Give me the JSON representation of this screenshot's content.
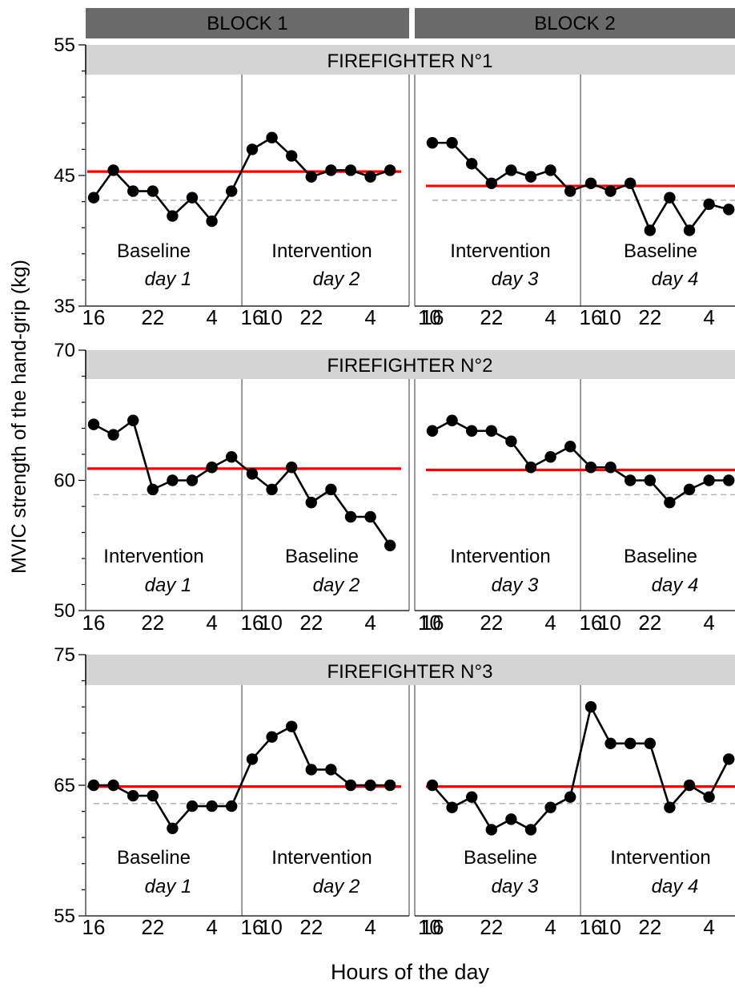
{
  "colors": {
    "block_header": "#6a6a6a",
    "panel_header": "#d4d4d4",
    "mean_line": "#ff0000",
    "ref_line": "#b5b5b5",
    "series": "#000000",
    "divider": "#7a7a7a"
  },
  "chart_data": {
    "type": "line",
    "ylabel": "MVIC strength of the hand-grip (kg)",
    "xlabel": "Hours of the day",
    "blocks": [
      "BLOCK 1",
      "BLOCK 2"
    ],
    "x_tick_labels": [
      "16",
      "22",
      "4",
      "10"
    ],
    "x_hours": [
      16,
      18,
      20,
      22,
      0,
      2,
      4,
      6,
      8,
      10,
      12
    ],
    "grid": false,
    "panels": [
      {
        "title": "FIREFIGHTER N°1",
        "ylim": [
          35,
          55
        ],
        "yticks": [
          35,
          45,
          55
        ],
        "ref_level": 43.1,
        "block1": {
          "mean": 45.3,
          "days": [
            {
              "phase": "Baseline",
              "day": "day 1",
              "values": [
                43.3,
                45.4,
                43.8,
                43.8,
                41.9,
                43.3,
                41.5,
                43.8
              ]
            },
            {
              "phase": "Intervention",
              "day": "day 2",
              "values": [
                47.0,
                47.9,
                46.5,
                44.9,
                45.4,
                45.4,
                44.9,
                45.4
              ]
            }
          ]
        },
        "block2": {
          "mean": 44.2,
          "days": [
            {
              "phase": "Intervention",
              "day": "day 3",
              "values": [
                47.5,
                47.5,
                45.9,
                44.4,
                45.4,
                44.9,
                45.4,
                43.8
              ]
            },
            {
              "phase": "Baseline",
              "day": "day 4",
              "values": [
                44.4,
                43.8,
                44.4,
                40.8,
                43.3,
                40.8,
                42.8,
                42.4
              ]
            }
          ]
        }
      },
      {
        "title": "FIREFIGHTER N°2",
        "ylim": [
          50,
          70
        ],
        "yticks": [
          50,
          60,
          70
        ],
        "ref_level": 58.9,
        "block1": {
          "mean": 60.9,
          "days": [
            {
              "phase": "Intervention",
              "day": "day 1",
              "values": [
                64.3,
                63.5,
                64.6,
                59.3,
                60.0,
                60.0,
                61.0,
                61.8
              ]
            },
            {
              "phase": "Baseline",
              "day": "day 2",
              "values": [
                60.5,
                59.3,
                61.0,
                58.3,
                59.3,
                57.2,
                57.2,
                55.0
              ]
            }
          ]
        },
        "block2": {
          "mean": 60.8,
          "days": [
            {
              "phase": "Intervention",
              "day": "day 3",
              "values": [
                63.8,
                64.6,
                63.8,
                63.8,
                63.0,
                61.0,
                61.8,
                62.6
              ]
            },
            {
              "phase": "Baseline",
              "day": "day 4",
              "values": [
                61.0,
                61.0,
                60.0,
                60.0,
                58.3,
                59.3,
                60.0,
                60.0
              ]
            }
          ]
        }
      },
      {
        "title": "FIREFIGHTER N°3",
        "ylim": [
          55,
          75
        ],
        "yticks": [
          55,
          65,
          75
        ],
        "ref_level": 63.6,
        "block1": {
          "mean": 64.9,
          "days": [
            {
              "phase": "Baseline",
              "day": "day 1",
              "values": [
                65.0,
                65.0,
                64.2,
                64.2,
                61.7,
                63.4,
                63.4,
                63.4
              ]
            },
            {
              "phase": "Intervention",
              "day": "day 2",
              "values": [
                67.0,
                68.7,
                69.5,
                66.2,
                66.2,
                65.0,
                65.0,
                65.0
              ]
            }
          ]
        },
        "block2": {
          "mean": 64.9,
          "days": [
            {
              "phase": "Baseline",
              "day": "day 3",
              "values": [
                65.0,
                63.3,
                64.1,
                61.6,
                62.4,
                61.6,
                63.3,
                64.1
              ]
            },
            {
              "phase": "Intervention",
              "day": "day 4",
              "values": [
                71.0,
                68.2,
                68.2,
                68.2,
                63.3,
                65.0,
                64.1,
                67.0
              ]
            }
          ]
        }
      }
    ]
  }
}
